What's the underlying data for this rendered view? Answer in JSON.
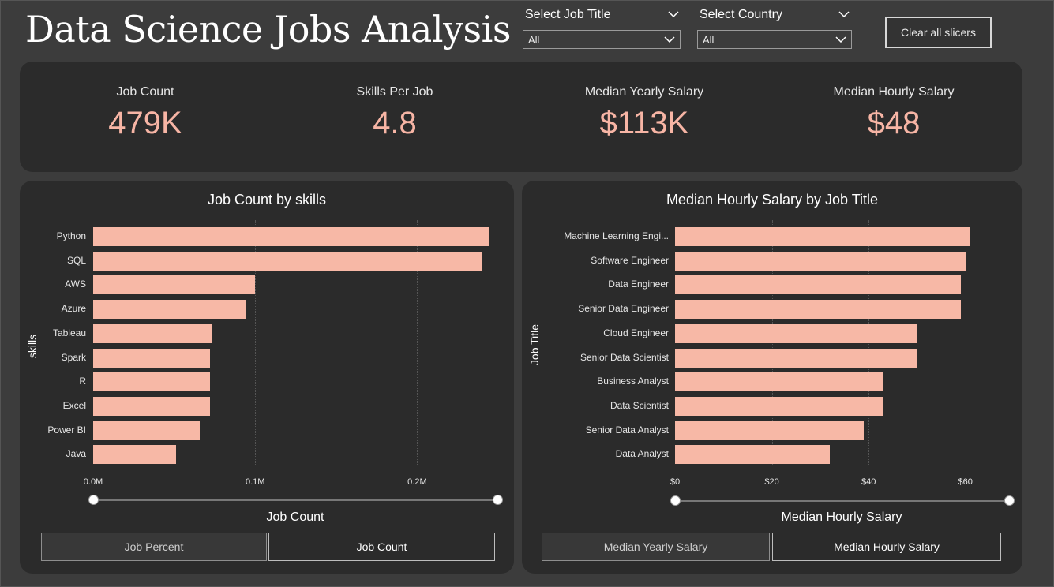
{
  "page": {
    "title": "Data Science Jobs Analysis"
  },
  "slicers": {
    "job_title": {
      "label": "Select Job Title",
      "value": "All"
    },
    "country": {
      "label": "Select Country",
      "value": "All"
    },
    "clear_label": "Clear all slicers"
  },
  "kpis": [
    {
      "label": "Job Count",
      "value": "479K"
    },
    {
      "label": "Skills Per Job",
      "value": "4.8"
    },
    {
      "label": "Median Yearly Salary",
      "value": "$113K"
    },
    {
      "label": "Median Hourly Salary",
      "value": "$48"
    }
  ],
  "colors": {
    "bar": "#f7b8a6",
    "kpi_value": "#f7b5a5",
    "panel": "#2b2b2b",
    "background": "#3c3c3c"
  },
  "skills_toggle": {
    "options": [
      "Job Percent",
      "Job Count"
    ],
    "selected": "Job Count"
  },
  "salary_toggle": {
    "options": [
      "Median Yearly Salary",
      "Median Hourly Salary"
    ],
    "selected": "Median Hourly Salary"
  },
  "chart_data": [
    {
      "type": "bar",
      "orientation": "horizontal",
      "title": "Job Count by skills",
      "xlabel": "Job Count",
      "ylabel": "skills",
      "categories": [
        "Python",
        "SQL",
        "AWS",
        "Azure",
        "Tableau",
        "Spark",
        "R",
        "Excel",
        "Power BI",
        "Java"
      ],
      "values": [
        244000,
        240000,
        100000,
        94000,
        73000,
        72000,
        72000,
        72000,
        66000,
        51000
      ],
      "xlim": [
        0,
        250000
      ],
      "ticks": [
        0,
        100000,
        200000
      ],
      "tick_labels": [
        "0.0M",
        "0.1M",
        "0.2M"
      ],
      "grid": true
    },
    {
      "type": "bar",
      "orientation": "horizontal",
      "title": "Median Hourly Salary by Job Title",
      "xlabel": "Median Hourly Salary",
      "ylabel": "Job Title",
      "categories": [
        "Machine Learning Engi...",
        "Software Engineer",
        "Data Engineer",
        "Senior Data Engineer",
        "Cloud Engineer",
        "Senior Data Scientist",
        "Business Analyst",
        "Data Scientist",
        "Senior Data Analyst",
        "Data Analyst"
      ],
      "values": [
        61,
        60,
        59,
        59,
        50,
        50,
        43,
        43,
        39,
        32
      ],
      "xlim": [
        0,
        62
      ],
      "ticks": [
        0,
        20,
        40,
        60
      ],
      "tick_labels": [
        "$0",
        "$20",
        "$40",
        "$60"
      ],
      "grid": true
    }
  ]
}
